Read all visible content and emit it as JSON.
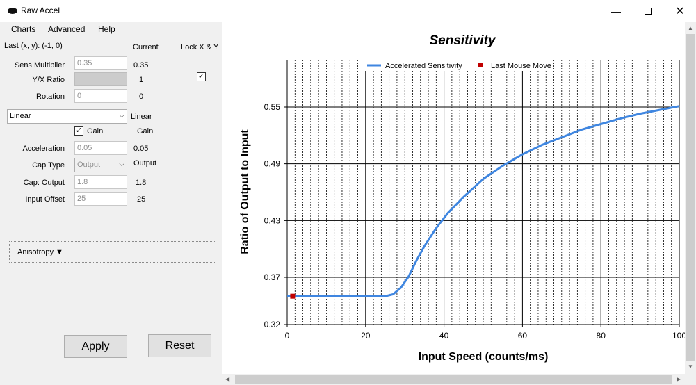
{
  "window": {
    "title": "Raw Accel",
    "minimize_icon": "minimize-icon",
    "maximize_icon": "maximize-icon",
    "close_icon": "close-icon"
  },
  "menu": {
    "items": [
      "Charts",
      "Advanced",
      "Help"
    ]
  },
  "panel": {
    "last_xy": "Last (x, y): (-1, 0)",
    "current_header": "Current",
    "lock_header": "Lock X & Y",
    "lock_checked": true,
    "sens_multiplier": {
      "label": "Sens Multiplier",
      "value": "0.35",
      "current": "0.35"
    },
    "yx_ratio": {
      "label": "Y/X Ratio",
      "value": "",
      "current": "1"
    },
    "rotation": {
      "label": "Rotation",
      "value": "0",
      "current": "0"
    },
    "accel_type": {
      "selected": "Linear",
      "current": "Linear"
    },
    "gain": {
      "label": "Gain",
      "checked": true,
      "current": "Gain"
    },
    "acceleration": {
      "label": "Acceleration",
      "value": "0.05",
      "current": "0.05"
    },
    "cap_type": {
      "label": "Cap Type",
      "selected": "Output",
      "current": "Output"
    },
    "cap_output": {
      "label": "Cap: Output",
      "value": "1.8",
      "current": "1.8"
    },
    "input_offset": {
      "label": "Input Offset",
      "value": "25",
      "current": "25"
    },
    "anisotropy": "Anisotropy ▼",
    "apply_label": "Apply",
    "reset_label": "Reset"
  },
  "chart_data": {
    "type": "line",
    "title": "Sensitivity",
    "xlabel": "Input Speed (counts/ms)",
    "ylabel": "Ratio of Output to Input",
    "xlim": [
      0,
      100
    ],
    "ylim": [
      0.32,
      0.6
    ],
    "x_ticks": [
      "0",
      "20",
      "40",
      "60",
      "80",
      "100"
    ],
    "y_ticks": [
      "0.32",
      "0.37",
      "0.43",
      "0.49",
      "0.55"
    ],
    "grid": true,
    "legend": "top-center",
    "series": [
      {
        "name": "Accelerated Sensitivity",
        "color": "#3f86e0",
        "x": [
          0,
          5,
          10,
          15,
          20,
          25,
          27,
          29,
          31,
          33,
          35,
          38,
          41,
          45,
          50,
          55,
          60,
          65,
          70,
          75,
          80,
          85,
          90,
          95,
          100
        ],
        "y": [
          0.35,
          0.35,
          0.35,
          0.35,
          0.35,
          0.35,
          0.352,
          0.359,
          0.371,
          0.388,
          0.403,
          0.422,
          0.438,
          0.455,
          0.474,
          0.488,
          0.5,
          0.51,
          0.518,
          0.526,
          0.532,
          0.538,
          0.543,
          0.547,
          0.551
        ]
      }
    ],
    "markers": [
      {
        "name": "Last Mouse Move",
        "color": "#c00000",
        "x": 1.4,
        "y": 0.35
      }
    ]
  }
}
